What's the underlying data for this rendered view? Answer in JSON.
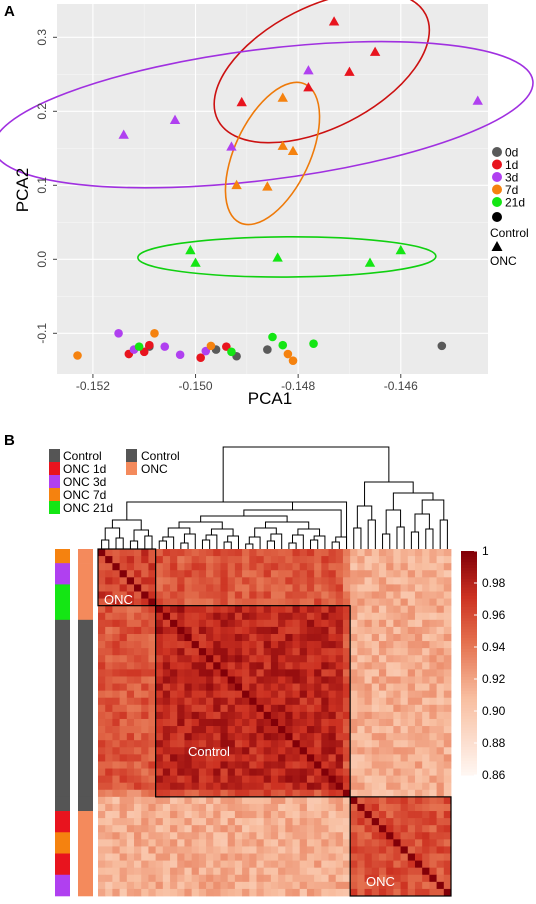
{
  "chart_data": [
    {
      "type": "scatter",
      "panel_label": "A",
      "xlabel": "PCA1",
      "ylabel": "PCA2",
      "xlim": [
        -0.1527,
        -0.1443
      ],
      "ylim": [
        -0.155,
        0.345
      ],
      "x_ticks": [
        -0.152,
        -0.15,
        -0.148,
        -0.146
      ],
      "x_tick_labels": [
        "-0.152",
        "-0.150",
        "-0.148",
        "-0.146"
      ],
      "y_ticks": [
        -0.1,
        0.0,
        0.1,
        0.2,
        0.3
      ],
      "y_tick_labels": [
        "-0.1",
        "0.0",
        "0.1",
        "0.2",
        "0.3"
      ],
      "grid": true,
      "legend": {
        "position": "right",
        "color_items": [
          {
            "label": "0d",
            "color": "#5a5a5a"
          },
          {
            "label": "1d",
            "color": "#e8141e"
          },
          {
            "label": "3d",
            "color": "#b040f0"
          },
          {
            "label": "7d",
            "color": "#f5820f"
          },
          {
            "label": "21d",
            "color": "#14e614"
          }
        ],
        "shape_items": [
          {
            "label": "Control",
            "shape": "circle"
          },
          {
            "label": "ONC",
            "shape": "triangle"
          }
        ]
      },
      "ellipses": [
        {
          "group": "1d",
          "color": "#cc1111"
        },
        {
          "group": "3d",
          "color": "#a030e0"
        },
        {
          "group": "7d",
          "color": "#ee7a0a"
        },
        {
          "group": "21d",
          "color": "#10d010"
        }
      ],
      "series": [
        {
          "group": "1d",
          "shape": "triangle",
          "points": [
            [
              -0.1473,
              0.321
            ],
            [
              -0.1465,
              0.28
            ],
            [
              -0.147,
              0.253
            ],
            [
              -0.1478,
              0.232
            ],
            [
              -0.1491,
              0.212
            ]
          ]
        },
        {
          "group": "3d",
          "shape": "triangle",
          "points": [
            [
              -0.1478,
              0.255
            ],
            [
              -0.1445,
              0.214
            ],
            [
              -0.1504,
              0.188
            ],
            [
              -0.1514,
              0.168
            ],
            [
              -0.1493,
              0.152
            ]
          ]
        },
        {
          "group": "7d",
          "shape": "triangle",
          "points": [
            [
              -0.1483,
              0.218
            ],
            [
              -0.1483,
              0.153
            ],
            [
              -0.1481,
              0.146
            ],
            [
              -0.1492,
              0.1
            ],
            [
              -0.1486,
              0.098
            ]
          ]
        },
        {
          "group": "21d",
          "shape": "triangle",
          "points": [
            [
              -0.1501,
              0.012
            ],
            [
              -0.15,
              -0.005
            ],
            [
              -0.1484,
              0.002
            ],
            [
              -0.1466,
              -0.005
            ],
            [
              -0.146,
              0.012
            ]
          ]
        },
        {
          "group": "0d",
          "shape": "circle",
          "points": [
            [
              -0.1452,
              -0.117
            ],
            [
              -0.1509,
              -0.118
            ],
            [
              -0.1496,
              -0.122
            ],
            [
              -0.1492,
              -0.131
            ],
            [
              -0.1486,
              -0.122
            ]
          ]
        },
        {
          "group": "1d",
          "shape": "circle",
          "points": [
            [
              -0.1513,
              -0.128
            ],
            [
              -0.151,
              -0.125
            ],
            [
              -0.1509,
              -0.116
            ],
            [
              -0.1499,
              -0.133
            ],
            [
              -0.1494,
              -0.118
            ]
          ]
        },
        {
          "group": "3d",
          "shape": "circle",
          "points": [
            [
              -0.1515,
              -0.1
            ],
            [
              -0.1512,
              -0.122
            ],
            [
              -0.1506,
              -0.118
            ],
            [
              -0.1503,
              -0.129
            ],
            [
              -0.1498,
              -0.124
            ]
          ]
        },
        {
          "group": "7d",
          "shape": "circle",
          "points": [
            [
              -0.1523,
              -0.13
            ],
            [
              -0.1508,
              -0.1
            ],
            [
              -0.1497,
              -0.117
            ],
            [
              -0.1482,
              -0.128
            ],
            [
              -0.1481,
              -0.137
            ]
          ]
        },
        {
          "group": "21d",
          "shape": "circle",
          "points": [
            [
              -0.1511,
              -0.118
            ],
            [
              -0.1493,
              -0.125
            ],
            [
              -0.1485,
              -0.105
            ],
            [
              -0.1483,
              -0.116
            ],
            [
              -0.1477,
              -0.114
            ]
          ]
        }
      ]
    },
    {
      "type": "heatmap",
      "panel_label": "B",
      "scale": {
        "min": 0.86,
        "max": 1,
        "ticks": [
          "1",
          "0.98",
          "0.96",
          "0.94",
          "0.92",
          "0.90",
          "0.88",
          "0.86"
        ]
      },
      "legend_left": [
        {
          "label": "Control",
          "color": "#555555"
        },
        {
          "label": "ONC 1d",
          "color": "#e8141e"
        },
        {
          "label": "ONC 3d",
          "color": "#b040f0"
        },
        {
          "label": "ONC 7d",
          "color": "#f5820f"
        },
        {
          "label": "ONC 21d",
          "color": "#14e614"
        }
      ],
      "legend_right": [
        {
          "label": "Control",
          "color": "#555555"
        },
        {
          "label": "ONC",
          "color": "#f48a5c"
        }
      ],
      "cluster_labels": [
        "ONC",
        "Control",
        "ONC"
      ],
      "row_annotation_groups": [
        "7d",
        "3d",
        "21d",
        "Control",
        "Control",
        "1d",
        "7d",
        "1d",
        "3d"
      ],
      "row_annotation_counts": [
        2,
        3,
        5,
        25,
        2,
        3,
        3,
        3,
        3
      ],
      "row_annotation_colors": {
        "Control": "#555555",
        "1d": "#e8141e",
        "3d": "#b040f0",
        "7d": "#f5820f",
        "21d": "#14e614"
      },
      "onc_bar_color": "#f48a5c",
      "control_bar_color": "#555555",
      "block_sizes": [
        8,
        27,
        14
      ],
      "value_description": "pairwise sample correlation"
    }
  ]
}
